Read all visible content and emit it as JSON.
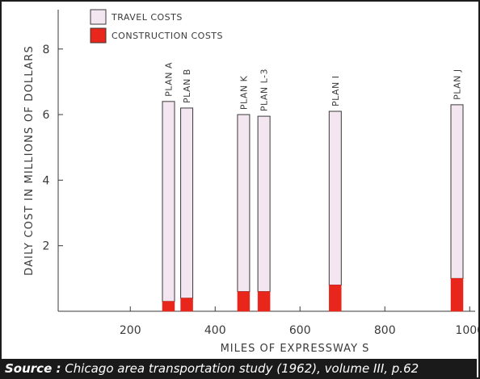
{
  "colors": {
    "travel": "#f3e6f0",
    "construction": "#e8261c",
    "outline": "#3a3a3a",
    "source_bg": "#1a1a1a"
  },
  "chart_data": {
    "type": "bar",
    "stacked": true,
    "title": "",
    "xlabel": "MILES OF EXPRESSWAY S",
    "ylabel": "DAILY COST IN MILLIONS OF DOLLARS",
    "xlim": [
      30,
      1030
    ],
    "ylim": [
      0,
      9.2
    ],
    "x_ticks": [
      200,
      400,
      600,
      800,
      1000
    ],
    "y_ticks": [
      2,
      4,
      6,
      8
    ],
    "legend": [
      "TRAVEL COSTS",
      "CONSTRUCTION COSTS"
    ],
    "legend_position": "top-left",
    "grid": false,
    "bars": [
      {
        "label": "PLAN A",
        "x": 290,
        "construction": 0.3,
        "total": 6.4
      },
      {
        "label": "PLAN B",
        "x": 333,
        "construction": 0.4,
        "total": 6.2
      },
      {
        "label": "PLAN K",
        "x": 467,
        "construction": 0.6,
        "total": 6.0
      },
      {
        "label": "PLAN L-3",
        "x": 515,
        "construction": 0.6,
        "total": 5.95
      },
      {
        "label": "PLAN I",
        "x": 683,
        "construction": 0.8,
        "total": 6.1
      },
      {
        "label": "PLAN J",
        "x": 970,
        "construction": 1.0,
        "total": 6.3
      }
    ]
  },
  "source": {
    "label": "Source :",
    "text": " Chicago area transportation study (1962), volume III, p.62"
  }
}
